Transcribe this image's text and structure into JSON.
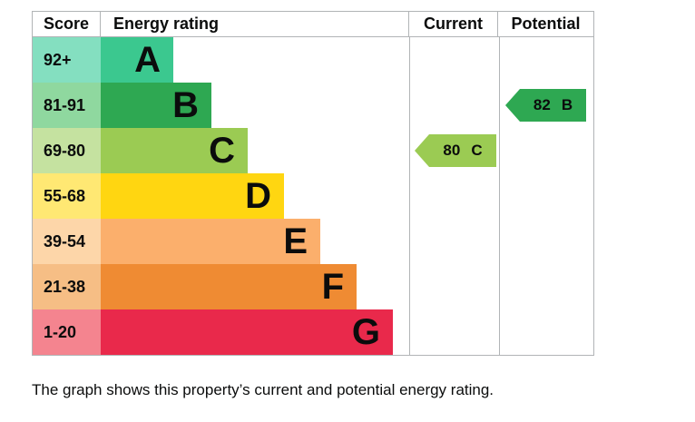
{
  "header": {
    "score": "Score",
    "rating": "Energy rating",
    "current": "Current",
    "potential": "Potential"
  },
  "chart_data": {
    "type": "bar",
    "kind": "epc-energy-efficiency-rating",
    "columns": [
      "Score",
      "Energy rating",
      "Current",
      "Potential"
    ],
    "bands": [
      {
        "letter": "A",
        "score_range": "92+",
        "bar_color": "#3bc88f",
        "score_color": "#84dfc0"
      },
      {
        "letter": "B",
        "score_range": "81-91",
        "bar_color": "#2ea852",
        "score_color": "#8fd89f"
      },
      {
        "letter": "C",
        "score_range": "69-80",
        "bar_color": "#9bcb53",
        "score_color": "#c5e2a0"
      },
      {
        "letter": "D",
        "score_range": "55-68",
        "bar_color": "#ffd611",
        "score_color": "#ffe873"
      },
      {
        "letter": "E",
        "score_range": "39-54",
        "bar_color": "#fbaf6c",
        "score_color": "#fdd6a9"
      },
      {
        "letter": "F",
        "score_range": "21-38",
        "bar_color": "#ef8b33",
        "score_color": "#f6be85"
      },
      {
        "letter": "G",
        "score_range": "1-20",
        "bar_color": "#e9294b",
        "score_color": "#f4848f"
      }
    ],
    "current": {
      "value": "80",
      "band": "C",
      "color": "#9bcb53"
    },
    "potential": {
      "value": "82",
      "band": "B",
      "color": "#2ea852"
    },
    "grid": "column separators only",
    "legend_position": "none"
  },
  "caption": "The graph shows this property’s current and potential energy rating."
}
